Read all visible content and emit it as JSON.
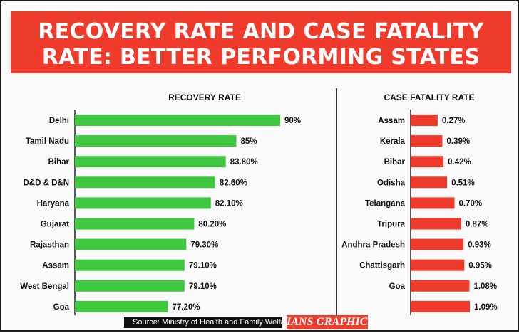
{
  "header": {
    "title_line1": "RECOVERY RATE AND CASE FATALITY",
    "title_line2": "RATE: BETTER PERFORMING STATES"
  },
  "footer": {
    "source": "Source: Ministry of Health and Family Welfare",
    "brand": "IANS GRAPHICS"
  },
  "colors": {
    "banner": "#ef3b2c",
    "recovery_bar": "#3fc83f",
    "fatality_bar": "#ef3b2c"
  },
  "chart_data": [
    {
      "type": "bar",
      "orientation": "horizontal",
      "title": "RECOVERY RATE",
      "categories": [
        "Delhi",
        "Tamil Nadu",
        "Bihar",
        "D&D & D&N",
        "Haryana",
        "Gujarat",
        "Rajasthan",
        "Assam",
        "West Bengal",
        "Goa"
      ],
      "values": [
        90,
        85,
        83.8,
        82.6,
        82.1,
        80.2,
        79.3,
        79.1,
        79.1,
        77.2
      ],
      "labels": [
        "90%",
        "85%",
        "83.80%",
        "82.60%",
        "82.10%",
        "80.20%",
        "79.30%",
        "79.10%",
        "79.10%",
        "77.20%"
      ],
      "xlim": [
        77,
        90
      ],
      "unit": "%",
      "grid": false,
      "legend": "none"
    },
    {
      "type": "bar",
      "orientation": "horizontal",
      "title": "CASE FATALITY RATE",
      "categories": [
        "Assam",
        "Kerala",
        "Bihar",
        "Odisha",
        "Telangana",
        "Tripura",
        "Andhra Pradesh",
        "Chattisgarh",
        "Goa",
        ""
      ],
      "values": [
        0.27,
        0.39,
        0.42,
        0.51,
        0.7,
        0.87,
        0.93,
        0.95,
        1.08,
        1.09
      ],
      "labels": [
        "0.27%",
        "0.39%",
        "0.42%",
        "0.51%",
        "0.70%",
        "0.87%",
        "0.93%",
        "0.95%",
        "1.08%",
        "1.09%"
      ],
      "xlim": [
        0,
        1.09
      ],
      "unit": "%",
      "grid": false,
      "legend": "none"
    }
  ]
}
